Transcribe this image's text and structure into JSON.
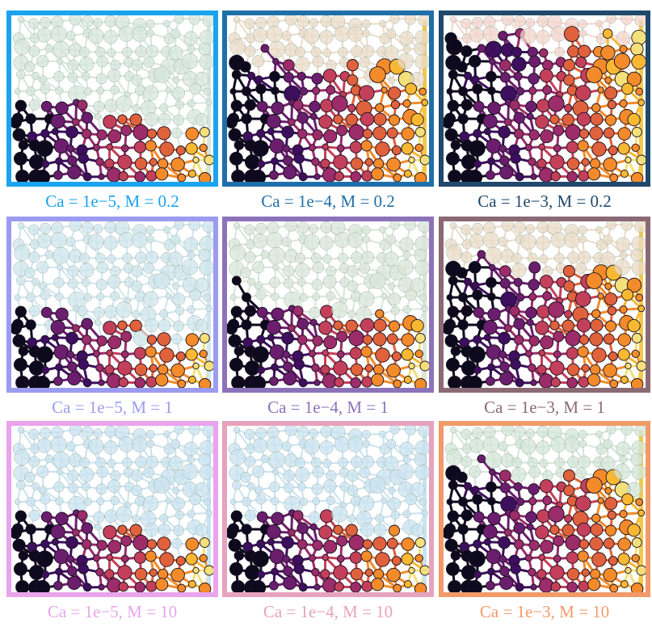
{
  "panels": [
    {
      "ca": "1e-5",
      "m": "0.2",
      "label": "Ca = 1e−5, M = 0.2",
      "border": "#1aa3ee",
      "label_color": "#1aa3ee",
      "bg_fill": "#d6e6dc",
      "front": 0.42
    },
    {
      "ca": "1e-4",
      "m": "0.2",
      "label": "Ca = 1e−4, M = 0.2",
      "border": "#1f6fa8",
      "label_color": "#1f6fa8",
      "bg_fill": "#eadcc8",
      "front": 0.68
    },
    {
      "ca": "1e-3",
      "m": "0.2",
      "label": "Ca = 1e−3, M = 0.2",
      "border": "#20496c",
      "label_color": "#20496c",
      "bg_fill": "#f2d6cc",
      "front": 0.82
    },
    {
      "ca": "1e-5",
      "m": "1",
      "label": "Ca = 1e−5, M = 1",
      "border": "#9b9cf0",
      "label_color": "#9b9cf0",
      "bg_fill": "#cfe6ec",
      "front": 0.38
    },
    {
      "ca": "1e-4",
      "m": "1",
      "label": "Ca = 1e−4, M = 1",
      "border": "#8c73b9",
      "label_color": "#8c73b9",
      "bg_fill": "#d9e6d9",
      "front": 0.5
    },
    {
      "ca": "1e-3",
      "m": "1",
      "label": "Ca = 1e−3, M = 1",
      "border": "#8a6a74",
      "label_color": "#8a6a74",
      "bg_fill": "#eadcc8",
      "front": 0.72
    },
    {
      "ca": "1e-5",
      "m": "10",
      "label": "Ca = 1e−5, M = 10",
      "border": "#e9a4ec",
      "label_color": "#e9a4ec",
      "bg_fill": "#c9e3f0",
      "front": 0.4
    },
    {
      "ca": "1e-4",
      "m": "10",
      "label": "Ca = 1e−4, M = 10",
      "border": "#e6a3bd",
      "label_color": "#e6a3bd",
      "bg_fill": "#c9e3f0",
      "front": 0.44
    },
    {
      "ca": "1e-3",
      "m": "10",
      "label": "Ca = 1e−3, M = 10",
      "border": "#f19a6a",
      "label_color": "#f19a6a",
      "bg_fill": "#d4e6d8",
      "front": 0.7
    }
  ],
  "invasion_colors": [
    "#0d0a1e",
    "#3d0f5e",
    "#6c1e6e",
    "#9c2c6a",
    "#c4405a",
    "#e0623c",
    "#f38b2a",
    "#f8b832",
    "#f3e07a"
  ]
}
